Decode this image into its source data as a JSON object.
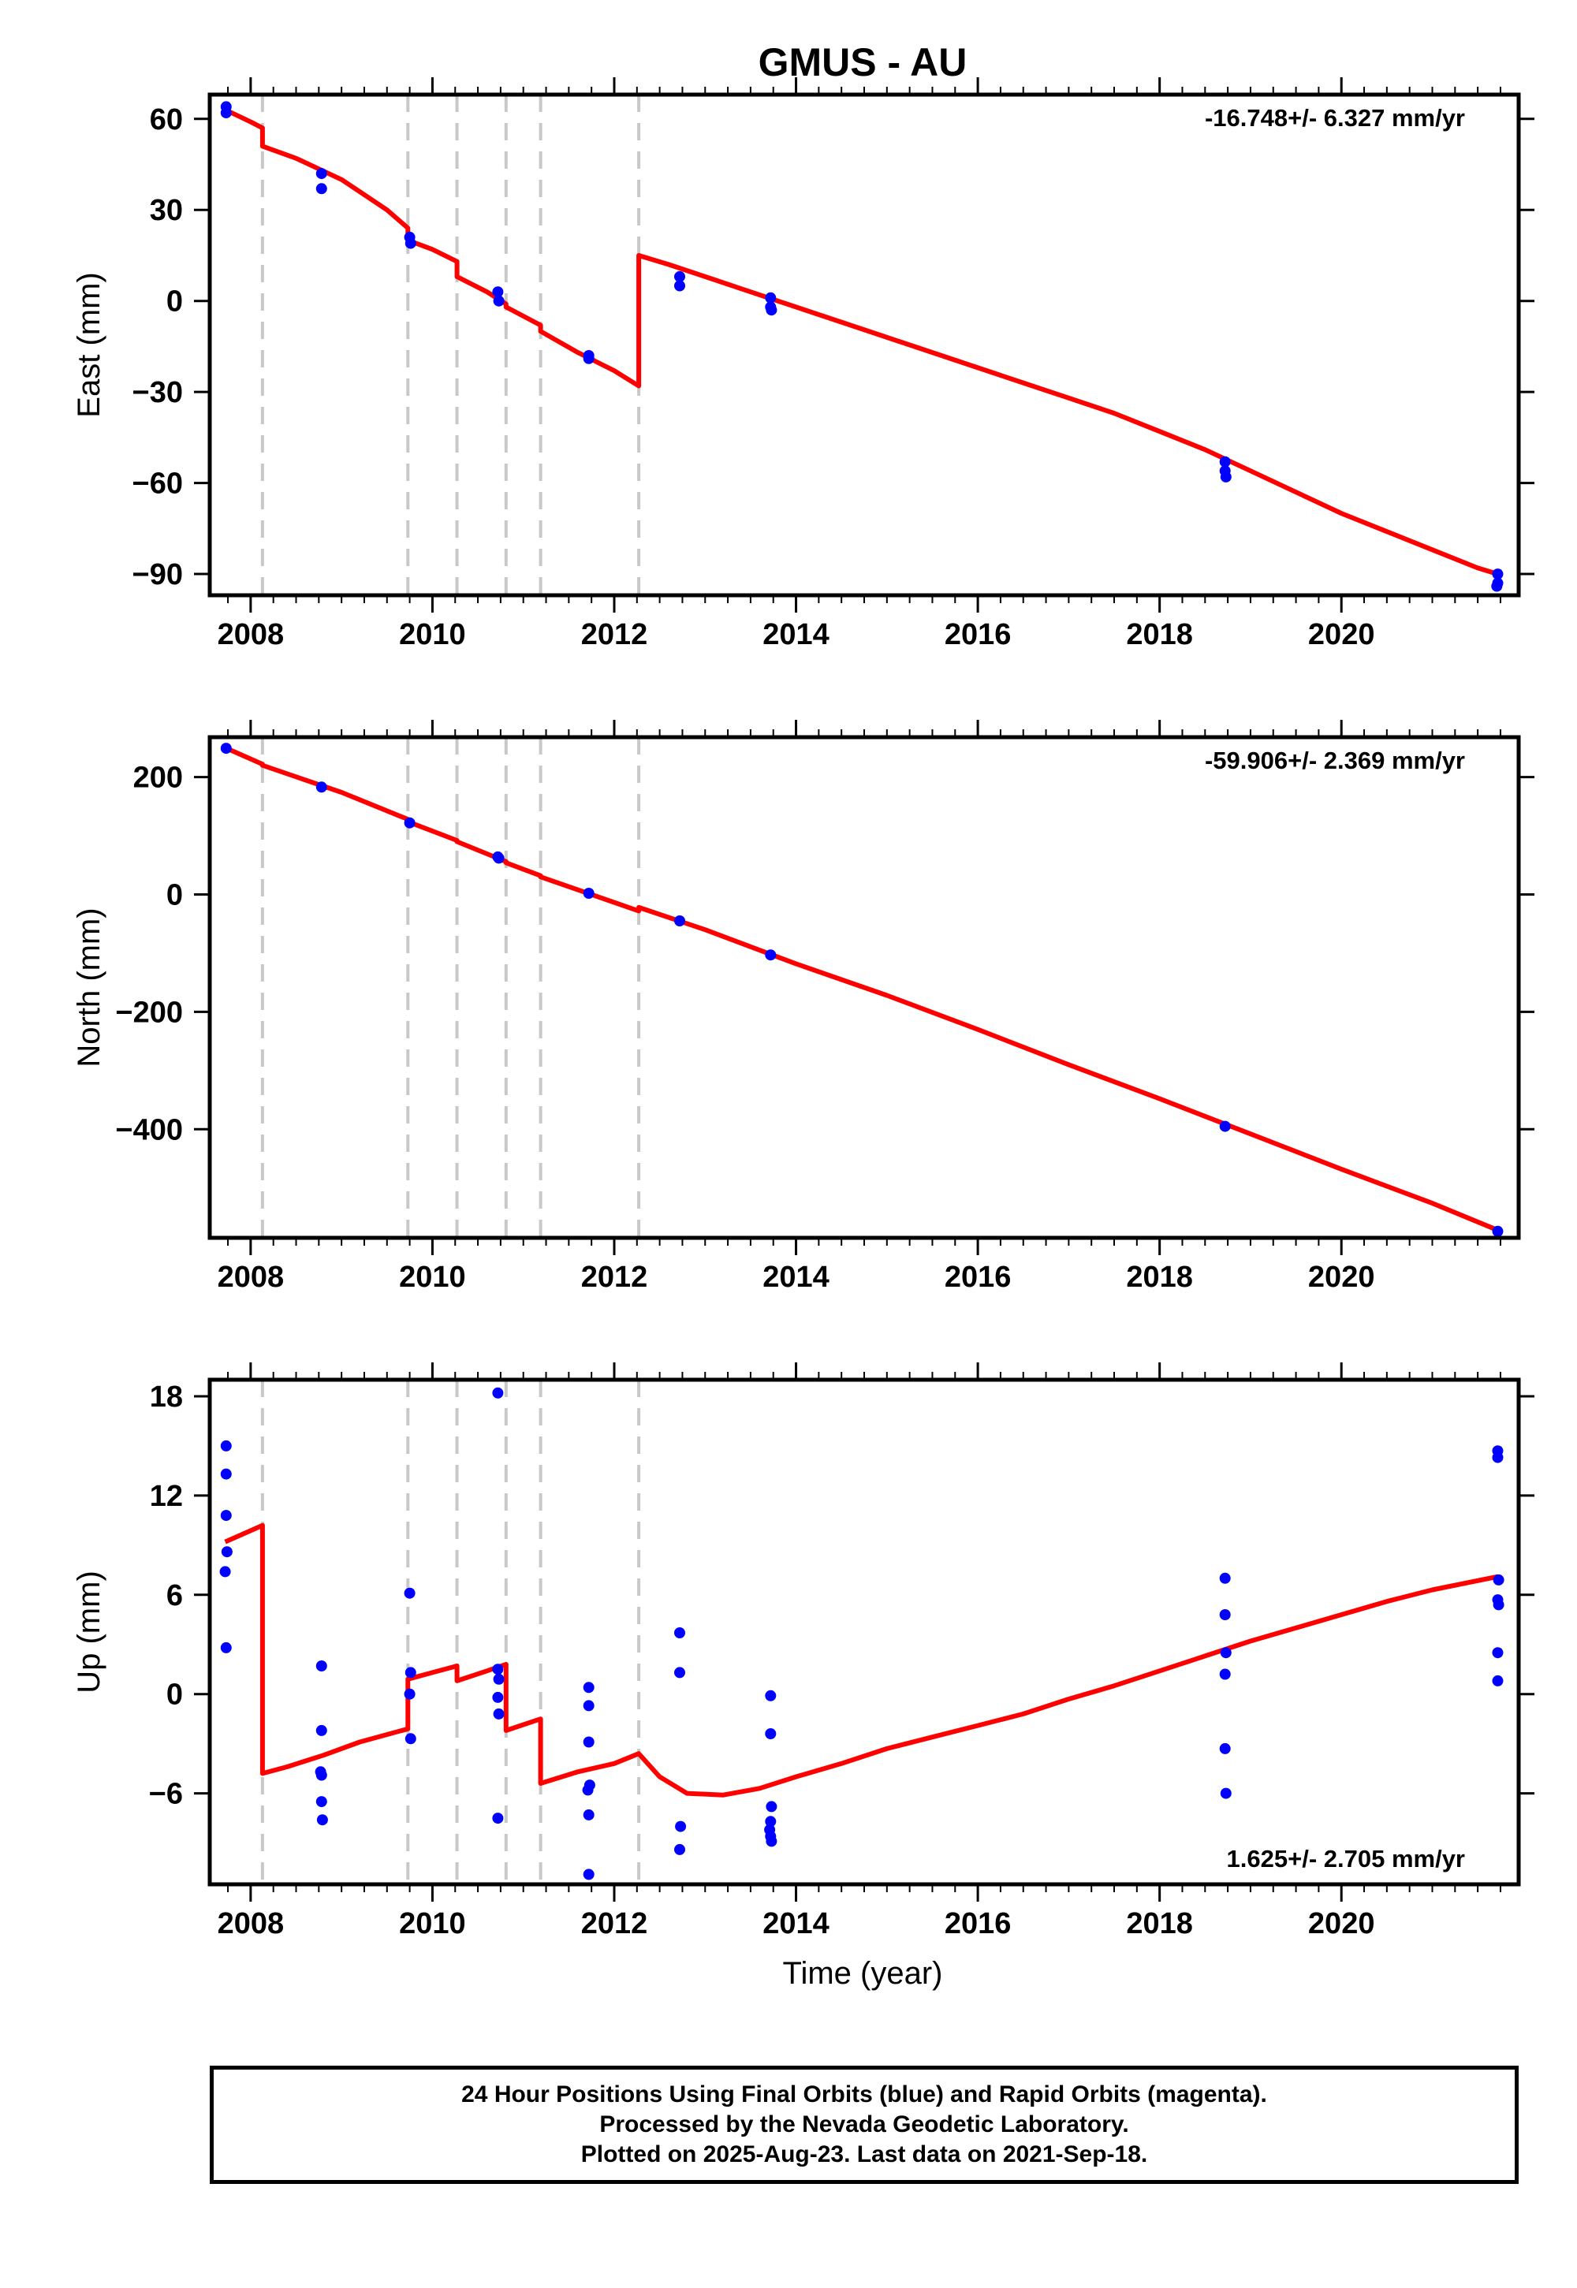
{
  "chart_data": {
    "type": "line",
    "title": "GMUS - AU",
    "xlabel": "Time (year)",
    "x_ticks": [
      2008,
      2010,
      2012,
      2014,
      2016,
      2018,
      2020
    ],
    "xlim": [
      2007.55,
      2021.95
    ],
    "steps": [
      2008.13,
      2009.73,
      2010.27,
      2010.81,
      2011.19,
      2012.27
    ],
    "colors": {
      "model": "#ff0000",
      "final_orbits": "#0000ff",
      "steps": "#c8c8c8",
      "frame": "#000000"
    },
    "panels": [
      {
        "id": "east",
        "ylabel": "East (mm)",
        "ylim": [
          -97,
          68
        ],
        "y_ticks": [
          60,
          30,
          0,
          -30,
          -60,
          -90
        ],
        "y_tick_labels": [
          "60",
          "30",
          "0",
          "−30",
          "−60",
          "−90"
        ],
        "rate_label": "-16.748+/- 6.327 mm/yr",
        "rate_position": "top-right",
        "model": [
          [
            2007.72,
            63
          ],
          [
            2008.0,
            59
          ],
          [
            2008.13,
            57
          ],
          [
            2008.13,
            51
          ],
          [
            2008.5,
            47
          ],
          [
            2009.0,
            40
          ],
          [
            2009.5,
            30
          ],
          [
            2009.73,
            24
          ],
          [
            2009.73,
            20
          ],
          [
            2010.0,
            17
          ],
          [
            2010.27,
            13
          ],
          [
            2010.27,
            8
          ],
          [
            2010.6,
            3
          ],
          [
            2010.81,
            -1
          ],
          [
            2010.81,
            -2
          ],
          [
            2011.19,
            -8
          ],
          [
            2011.19,
            -10
          ],
          [
            2011.6,
            -17
          ],
          [
            2012.0,
            -23
          ],
          [
            2012.27,
            -28
          ],
          [
            2012.27,
            15
          ],
          [
            2012.6,
            12
          ],
          [
            2013.0,
            8
          ],
          [
            2013.5,
            3
          ],
          [
            2014.0,
            -2
          ],
          [
            2014.5,
            -7
          ],
          [
            2015.0,
            -12
          ],
          [
            2015.5,
            -17
          ],
          [
            2016.0,
            -22
          ],
          [
            2016.5,
            -27
          ],
          [
            2017.0,
            -32
          ],
          [
            2017.5,
            -37
          ],
          [
            2018.0,
            -43
          ],
          [
            2018.5,
            -49
          ],
          [
            2019.0,
            -56
          ],
          [
            2019.5,
            -63
          ],
          [
            2020.0,
            -70
          ],
          [
            2020.5,
            -76
          ],
          [
            2021.0,
            -82
          ],
          [
            2021.5,
            -88
          ],
          [
            2021.72,
            -90
          ]
        ],
        "points": [
          [
            2007.73,
            64
          ],
          [
            2007.73,
            62
          ],
          [
            2008.78,
            42
          ],
          [
            2008.78,
            37
          ],
          [
            2009.75,
            21
          ],
          [
            2009.76,
            19
          ],
          [
            2010.72,
            3
          ],
          [
            2010.73,
            0
          ],
          [
            2011.72,
            -18
          ],
          [
            2011.72,
            -19
          ],
          [
            2012.72,
            8
          ],
          [
            2012.72,
            5
          ],
          [
            2013.72,
            1
          ],
          [
            2013.72,
            -2
          ],
          [
            2013.73,
            -3
          ],
          [
            2018.72,
            -53
          ],
          [
            2018.72,
            -56
          ],
          [
            2018.73,
            -58
          ],
          [
            2021.72,
            -90
          ],
          [
            2021.72,
            -93
          ],
          [
            2021.71,
            -94
          ]
        ]
      },
      {
        "id": "north",
        "ylabel": "North (mm)",
        "ylim": [
          -585,
          268
        ],
        "y_ticks": [
          200,
          0,
          -200,
          -400
        ],
        "y_tick_labels": [
          "200",
          "0",
          "−200",
          "−400"
        ],
        "rate_label": "-59.906+/- 2.369 mm/yr",
        "rate_position": "top-right",
        "model": [
          [
            2007.72,
            250
          ],
          [
            2008.13,
            222
          ],
          [
            2008.13,
            220
          ],
          [
            2009.0,
            174
          ],
          [
            2009.73,
            128
          ],
          [
            2009.73,
            124
          ],
          [
            2010.27,
            92
          ],
          [
            2010.27,
            90
          ],
          [
            2010.81,
            56
          ],
          [
            2010.81,
            54
          ],
          [
            2011.19,
            32
          ],
          [
            2011.19,
            30
          ],
          [
            2012.27,
            -28
          ],
          [
            2012.27,
            -22
          ],
          [
            2013.0,
            -60
          ],
          [
            2014.0,
            -118
          ],
          [
            2015.0,
            -172
          ],
          [
            2016.0,
            -230
          ],
          [
            2017.0,
            -290
          ],
          [
            2018.0,
            -348
          ],
          [
            2019.0,
            -408
          ],
          [
            2020.0,
            -468
          ],
          [
            2021.0,
            -526
          ],
          [
            2021.72,
            -572
          ]
        ],
        "points": [
          [
            2007.73,
            249
          ],
          [
            2008.78,
            183
          ],
          [
            2009.75,
            122
          ],
          [
            2010.72,
            64
          ],
          [
            2010.73,
            62
          ],
          [
            2011.72,
            2
          ],
          [
            2012.72,
            -45
          ],
          [
            2013.72,
            -103
          ],
          [
            2018.72,
            -395
          ],
          [
            2021.72,
            -574
          ]
        ]
      },
      {
        "id": "up",
        "ylabel": "Up (mm)",
        "ylim": [
          -11.5,
          19
        ],
        "y_ticks": [
          18,
          12,
          6,
          0,
          -6
        ],
        "y_tick_labels": [
          "18",
          "12",
          "6",
          "0",
          "−6"
        ],
        "rate_label": "1.625+/- 2.705 mm/yr",
        "rate_position": "bottom-right",
        "model": [
          [
            2007.72,
            9.2
          ],
          [
            2008.13,
            10.2
          ],
          [
            2008.13,
            -4.8
          ],
          [
            2008.4,
            -4.4
          ],
          [
            2008.8,
            -3.7
          ],
          [
            2009.2,
            -2.9
          ],
          [
            2009.73,
            -2.1
          ],
          [
            2009.73,
            0.9
          ],
          [
            2010.0,
            1.3
          ],
          [
            2010.27,
            1.7
          ],
          [
            2010.27,
            0.8
          ],
          [
            2010.6,
            1.4
          ],
          [
            2010.81,
            1.8
          ],
          [
            2010.81,
            -2.2
          ],
          [
            2011.19,
            -1.5
          ],
          [
            2011.19,
            -5.4
          ],
          [
            2011.6,
            -4.7
          ],
          [
            2012.0,
            -4.2
          ],
          [
            2012.27,
            -3.6
          ],
          [
            2012.5,
            -5.0
          ],
          [
            2012.8,
            -6.0
          ],
          [
            2013.2,
            -6.1
          ],
          [
            2013.6,
            -5.7
          ],
          [
            2014.0,
            -5.0
          ],
          [
            2014.5,
            -4.2
          ],
          [
            2015.0,
            -3.3
          ],
          [
            2015.5,
            -2.6
          ],
          [
            2016.0,
            -1.9
          ],
          [
            2016.5,
            -1.2
          ],
          [
            2017.0,
            -0.3
          ],
          [
            2017.5,
            0.5
          ],
          [
            2018.0,
            1.4
          ],
          [
            2018.5,
            2.3
          ],
          [
            2019.0,
            3.2
          ],
          [
            2019.5,
            4.0
          ],
          [
            2020.0,
            4.8
          ],
          [
            2020.5,
            5.6
          ],
          [
            2021.0,
            6.3
          ],
          [
            2021.72,
            7.1
          ]
        ],
        "points": [
          [
            2007.73,
            15.0
          ],
          [
            2007.73,
            13.3
          ],
          [
            2007.73,
            10.8
          ],
          [
            2007.74,
            8.6
          ],
          [
            2007.72,
            7.4
          ],
          [
            2007.73,
            2.8
          ],
          [
            2008.78,
            1.7
          ],
          [
            2008.78,
            -2.2
          ],
          [
            2008.77,
            -4.7
          ],
          [
            2008.78,
            -4.9
          ],
          [
            2008.78,
            -6.5
          ],
          [
            2008.79,
            -7.6
          ],
          [
            2009.75,
            6.1
          ],
          [
            2009.76,
            1.3
          ],
          [
            2009.75,
            0.0
          ],
          [
            2009.76,
            -2.7
          ],
          [
            2010.72,
            18.2
          ],
          [
            2010.72,
            1.5
          ],
          [
            2010.73,
            0.9
          ],
          [
            2010.72,
            -0.2
          ],
          [
            2010.73,
            -1.2
          ],
          [
            2010.72,
            -7.5
          ],
          [
            2011.72,
            0.4
          ],
          [
            2011.72,
            -0.7
          ],
          [
            2011.72,
            -2.9
          ],
          [
            2011.73,
            -5.5
          ],
          [
            2011.71,
            -5.8
          ],
          [
            2011.72,
            -7.3
          ],
          [
            2011.72,
            -10.9
          ],
          [
            2012.72,
            3.7
          ],
          [
            2012.72,
            1.3
          ],
          [
            2012.73,
            -8.0
          ],
          [
            2012.72,
            -9.4
          ],
          [
            2013.72,
            -0.1
          ],
          [
            2013.72,
            -2.4
          ],
          [
            2013.73,
            -6.8
          ],
          [
            2013.72,
            -7.7
          ],
          [
            2013.71,
            -8.2
          ],
          [
            2013.72,
            -8.6
          ],
          [
            2013.73,
            -8.9
          ],
          [
            2018.72,
            7.0
          ],
          [
            2018.72,
            4.8
          ],
          [
            2018.73,
            2.5
          ],
          [
            2018.72,
            1.2
          ],
          [
            2018.72,
            -3.3
          ],
          [
            2018.73,
            -6.0
          ],
          [
            2021.72,
            14.7
          ],
          [
            2021.72,
            14.3
          ],
          [
            2021.73,
            6.9
          ],
          [
            2021.72,
            5.7
          ],
          [
            2021.73,
            5.4
          ],
          [
            2021.72,
            2.5
          ],
          [
            2021.72,
            0.8
          ]
        ]
      }
    ],
    "legend": [
      "24 Hour Positions Using Final Orbits (blue) and Rapid Orbits (magenta).",
      "Processed by the Nevada Geodetic Laboratory.",
      "Plotted on 2025-Aug-23. Last data on 2021-Sep-18."
    ]
  }
}
